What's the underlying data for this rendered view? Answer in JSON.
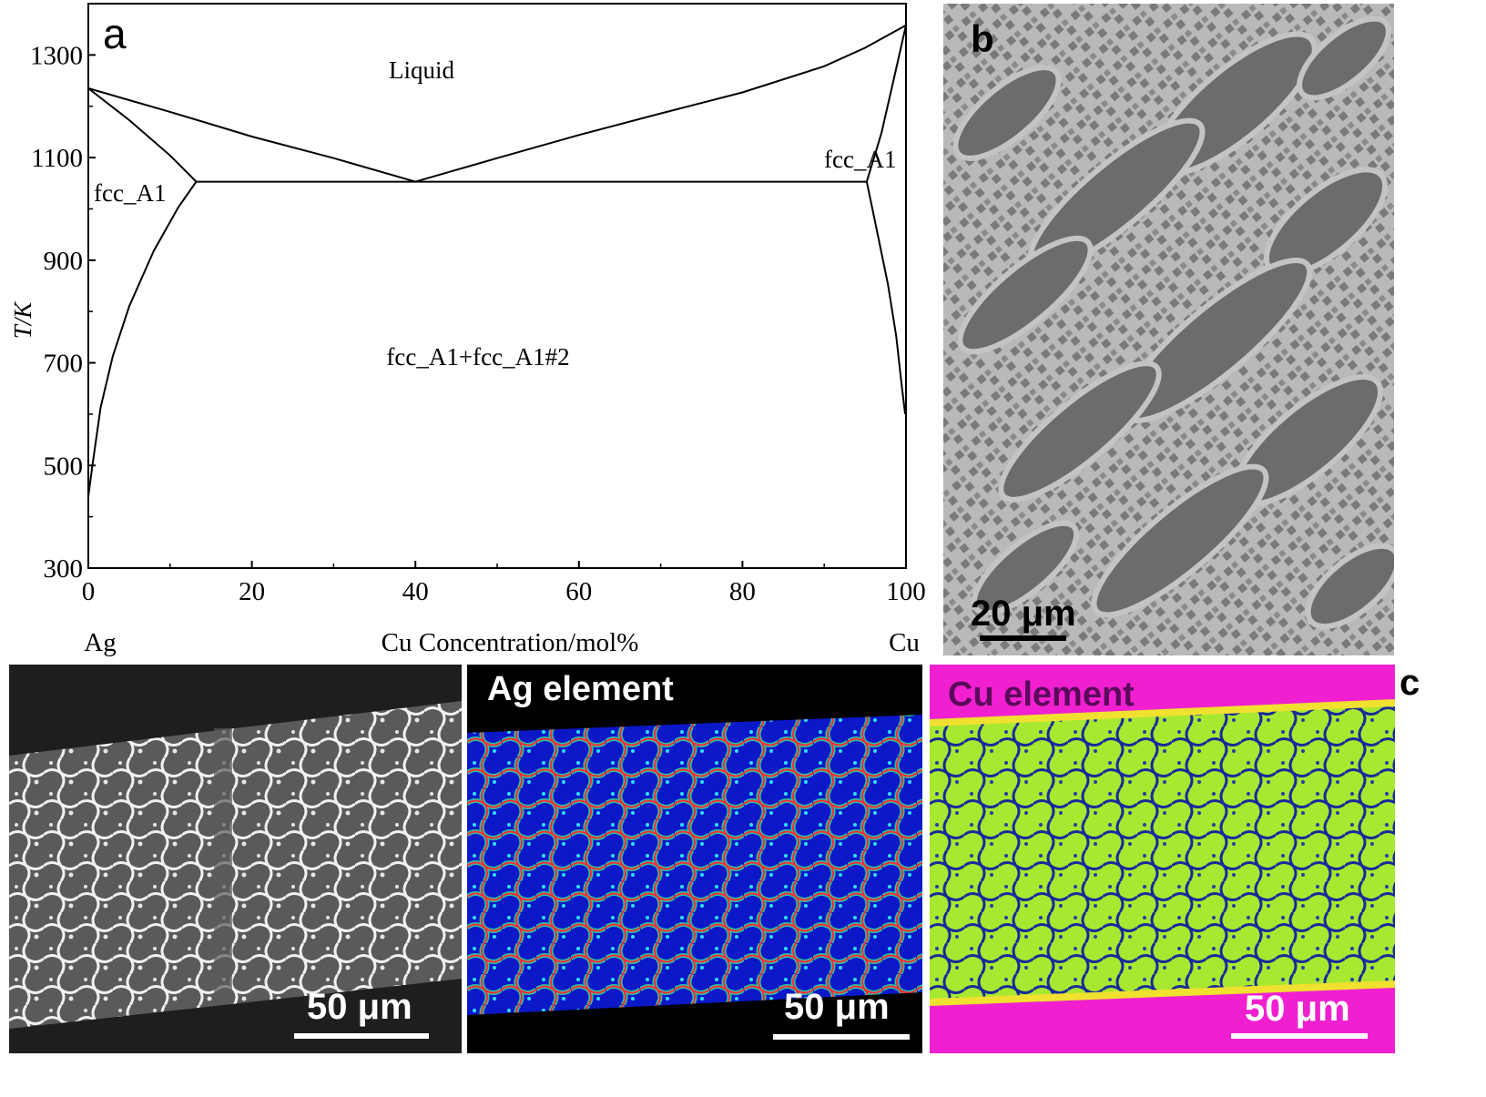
{
  "panel_a": {
    "letter": "a",
    "region_liquid": "Liquid",
    "region_fcc_left": "fcc_A1",
    "region_fcc_right": "fcc_A1",
    "region_two_phase": "fcc_A1+fcc_A1#2",
    "left_element": "Ag",
    "right_element": "Cu"
  },
  "chart_data": {
    "type": "line",
    "title": "",
    "xlabel": "Cu Concentration/mol%",
    "ylabel": "T/K",
    "xlim": [
      0,
      100
    ],
    "ylim": [
      300,
      1400
    ],
    "x_ticks": [
      0,
      20,
      40,
      60,
      80,
      100
    ],
    "y_ticks": [
      300,
      500,
      700,
      900,
      1100,
      1300
    ],
    "grid": false,
    "series": [
      {
        "x": [
          0,
          10,
          20,
          30,
          40
        ],
        "y": [
          1235,
          1189,
          1141,
          1099,
          1053
        ]
      },
      {
        "x": [
          40,
          50,
          60,
          70,
          80,
          90,
          95,
          100
        ],
        "y": [
          1053,
          1099,
          1144,
          1186,
          1227,
          1278,
          1314,
          1358
        ]
      },
      {
        "x": [
          0,
          5,
          10,
          13.2
        ],
        "y": [
          1235,
          1173,
          1104,
          1053
        ]
      },
      {
        "x": [
          95.2,
          97,
          98.5,
          100
        ],
        "y": [
          1053,
          1148,
          1252,
          1358
        ]
      },
      {
        "x": [
          13.2,
          95.2
        ],
        "y": [
          1053,
          1053
        ]
      },
      {
        "x": [
          13.2,
          11,
          8,
          5,
          3,
          1.5,
          0.5,
          0
        ],
        "y": [
          1053,
          1003,
          918,
          810,
          713,
          613,
          500,
          440
        ]
      },
      {
        "x": [
          95.2,
          96.5,
          97.8,
          98.8,
          99.5,
          99.9
        ],
        "y": [
          1053,
          953,
          853,
          753,
          653,
          600
        ]
      }
    ]
  },
  "panel_b": {
    "letter": "b",
    "scale_bar": "20 μm"
  },
  "panel_c": {
    "letter": "c",
    "sem_scale_bar": "50 μm",
    "ag_map_title": "Ag element",
    "ag_scale_bar": "50 μm",
    "cu_map_title": "Cu element",
    "cu_scale_bar": "50 μm"
  },
  "colors": {
    "sem_matrix": "#5a5a5a",
    "sem_bright_phase": "#f0f0f0",
    "ag_map_background": "#0a18c8",
    "ag_map_signal": "#ff2a3a",
    "cu_map_matrix": "#a8e830",
    "cu_map_border": "#f020d0",
    "micrograph_b_dark": "#6e6e6e",
    "micrograph_b_light": "#bcbcbc"
  }
}
